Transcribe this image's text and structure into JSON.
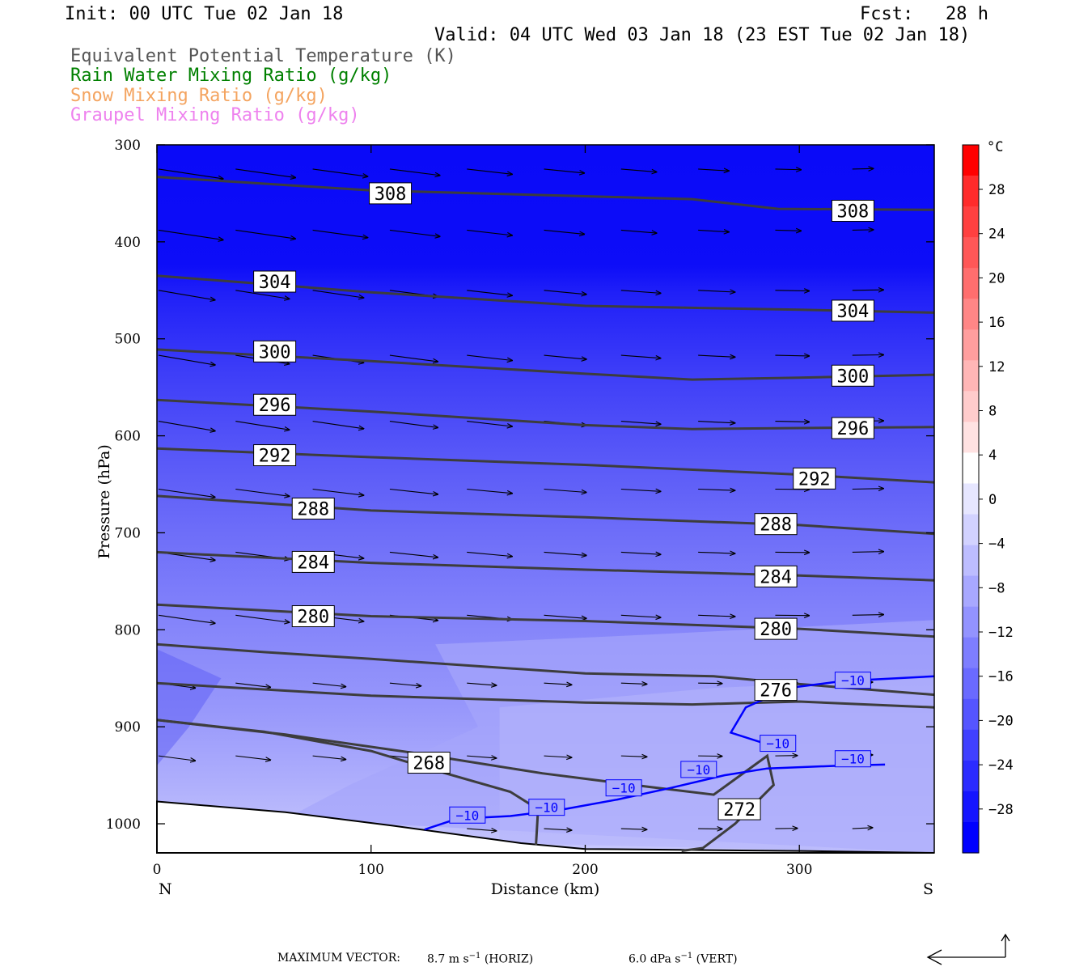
{
  "header": {
    "init": "Init: 00 UTC Tue 02 Jan 18",
    "fcst": "Fcst:   28 h",
    "valid": "Valid: 04 UTC Wed 03 Jan 18 (23 EST Tue 02 Jan 18)"
  },
  "legend": [
    {
      "label": "Equivalent Potential Temperature (K)",
      "color": "#555555"
    },
    {
      "label": "Rain Water Mixing Ratio (g/kg)",
      "color": "#008000"
    },
    {
      "label": "Snow Mixing Ratio (g/kg)",
      "color": "#f4a460"
    },
    {
      "label": "Graupel Mixing Ratio (g/kg)",
      "color": "#ee82ee"
    }
  ],
  "chart_data": {
    "type": "cross-section",
    "xlabel": "Distance (km)",
    "ylabel": "Pressure (hPa)",
    "x_ticks": [
      0,
      100,
      200,
      300
    ],
    "xlim": [
      0,
      363
    ],
    "y_ticks": [
      300,
      400,
      500,
      600,
      700,
      800,
      900,
      1000
    ],
    "ylim": [
      1030,
      300
    ],
    "end_labels": {
      "left": "N",
      "right": "S"
    },
    "theta_e_contours": [
      {
        "value": 308,
        "points": [
          [
            0,
            333
          ],
          [
            100,
            347
          ],
          [
            200,
            353
          ],
          [
            250,
            356
          ],
          [
            290,
            366
          ],
          [
            363,
            367
          ]
        ]
      },
      {
        "value": 304,
        "points": [
          [
            0,
            435
          ],
          [
            100,
            452
          ],
          [
            200,
            466
          ],
          [
            300,
            470
          ],
          [
            363,
            473
          ]
        ]
      },
      {
        "value": 300,
        "points": [
          [
            0,
            511
          ],
          [
            100,
            523
          ],
          [
            200,
            536
          ],
          [
            250,
            542
          ],
          [
            300,
            540
          ],
          [
            363,
            537
          ]
        ]
      },
      {
        "value": 296,
        "points": [
          [
            0,
            563
          ],
          [
            100,
            575
          ],
          [
            200,
            589
          ],
          [
            250,
            593
          ],
          [
            300,
            592
          ],
          [
            363,
            591
          ]
        ]
      },
      {
        "value": 292,
        "points": [
          [
            0,
            613
          ],
          [
            100,
            622
          ],
          [
            200,
            630
          ],
          [
            300,
            640
          ],
          [
            363,
            648
          ]
        ]
      },
      {
        "value": 288,
        "points": [
          [
            0,
            662
          ],
          [
            100,
            677
          ],
          [
            200,
            684
          ],
          [
            300,
            692
          ],
          [
            363,
            701
          ]
        ]
      },
      {
        "value": 284,
        "points": [
          [
            0,
            720
          ],
          [
            100,
            731
          ],
          [
            200,
            738
          ],
          [
            300,
            744
          ],
          [
            363,
            749
          ]
        ]
      },
      {
        "value": 280,
        "points": [
          [
            0,
            774
          ],
          [
            100,
            786
          ],
          [
            200,
            791
          ],
          [
            300,
            799
          ],
          [
            363,
            807
          ]
        ]
      },
      {
        "value": 276,
        "points": [
          [
            0,
            855
          ],
          [
            100,
            868
          ],
          [
            200,
            875
          ],
          [
            250,
            877
          ],
          [
            300,
            874
          ],
          [
            363,
            880
          ]
        ]
      },
      {
        "value": 272,
        "points": [
          [
            0,
            815
          ],
          [
            50,
            823
          ],
          [
            100,
            830
          ],
          [
            200,
            845
          ],
          [
            260,
            848
          ],
          [
            300,
            856
          ],
          [
            363,
            867
          ]
        ],
        "lower": [
          [
            0,
            893
          ],
          [
            60,
            908
          ],
          [
            120,
            927
          ],
          [
            180,
            948
          ],
          [
            230,
            962
          ],
          [
            260,
            970
          ],
          [
            285,
            930
          ],
          [
            288,
            960
          ],
          [
            270,
            1000
          ],
          [
            255,
            1025
          ],
          [
            245,
            1028
          ]
        ]
      },
      {
        "value": 268,
        "points": [
          [
            0,
            893
          ],
          [
            50,
            905
          ],
          [
            100,
            925
          ],
          [
            130,
            945
          ],
          [
            165,
            967
          ],
          [
            178,
            985
          ],
          [
            177,
            1022
          ]
        ]
      }
    ],
    "contour_labels": [
      {
        "value": "308",
        "x": 109,
        "p": 350
      },
      {
        "value": "308",
        "x": 325,
        "p": 368
      },
      {
        "value": "304",
        "x": 55,
        "p": 441
      },
      {
        "value": "304",
        "x": 325,
        "p": 471
      },
      {
        "value": "300",
        "x": 55,
        "p": 513
      },
      {
        "value": "300",
        "x": 325,
        "p": 538
      },
      {
        "value": "296",
        "x": 55,
        "p": 568
      },
      {
        "value": "296",
        "x": 325,
        "p": 592
      },
      {
        "value": "292",
        "x": 55,
        "p": 620
      },
      {
        "value": "292",
        "x": 307,
        "p": 644
      },
      {
        "value": "288",
        "x": 73,
        "p": 675
      },
      {
        "value": "288",
        "x": 289,
        "p": 691
      },
      {
        "value": "284",
        "x": 73,
        "p": 730
      },
      {
        "value": "284",
        "x": 289,
        "p": 745
      },
      {
        "value": "280",
        "x": 73,
        "p": 786
      },
      {
        "value": "280",
        "x": 289,
        "p": 799
      },
      {
        "value": "276",
        "x": 289,
        "p": 862
      },
      {
        "value": "272",
        "x": 272,
        "p": 985
      },
      {
        "value": "268",
        "x": 127,
        "p": 937
      }
    ],
    "temperature_contour": {
      "value": -10,
      "color": "#0000ff",
      "label": "−10",
      "branch_a": [
        [
          125,
          1006
        ],
        [
          140,
          995
        ],
        [
          165,
          992
        ],
        [
          190,
          985
        ],
        [
          215,
          975
        ],
        [
          240,
          963
        ],
        [
          265,
          950
        ],
        [
          285,
          943
        ],
        [
          320,
          940
        ],
        [
          340,
          939
        ]
      ],
      "branch_b": [
        [
          285,
          918
        ],
        [
          268,
          906
        ],
        [
          275,
          880
        ],
        [
          295,
          860
        ],
        [
          320,
          853
        ],
        [
          363,
          848
        ]
      ],
      "labels": [
        {
          "x": 145,
          "p": 991
        },
        {
          "x": 182,
          "p": 983
        },
        {
          "x": 218,
          "p": 963
        },
        {
          "x": 253,
          "p": 944
        },
        {
          "x": 290,
          "p": 917
        },
        {
          "x": 325,
          "p": 933
        },
        {
          "x": 325,
          "p": 852
        }
      ]
    },
    "terrain": [
      [
        0,
        977
      ],
      [
        60,
        988
      ],
      [
        110,
        1002
      ],
      [
        170,
        1020
      ],
      [
        200,
        1026
      ],
      [
        300,
        1028
      ],
      [
        363,
        1030
      ]
    ],
    "colorbar": {
      "unit": "°C",
      "tick_labels": [
        "28",
        "24",
        "20",
        "16",
        "12",
        "8",
        "4",
        "0",
        "−4",
        "−8",
        "−12",
        "−16",
        "−20",
        "−24",
        "−28"
      ],
      "colors": [
        "#ff0000",
        "#ff2b2b",
        "#ff4040",
        "#ff5757",
        "#ff6e6e",
        "#ff8686",
        "#ff9e9e",
        "#ffb6b6",
        "#ffcccc",
        "#ffe2e2",
        "#ffffff",
        "#e6e6ff",
        "#d2d2ff",
        "#bdbdff",
        "#a8a8ff",
        "#9393ff",
        "#7e7eff",
        "#6a6aff",
        "#5555ff",
        "#4040ff",
        "#2b2bff",
        "#1515ff",
        "#0000ff"
      ]
    }
  },
  "footer": {
    "max_label": "MAXIMUM VECTOR:",
    "horiz": "8.7 m s",
    "horiz_suffix": " (HORIZ)",
    "vert": "6.0 dPa s",
    "vert_suffix": " (VERT)",
    "exponent": "−1"
  }
}
